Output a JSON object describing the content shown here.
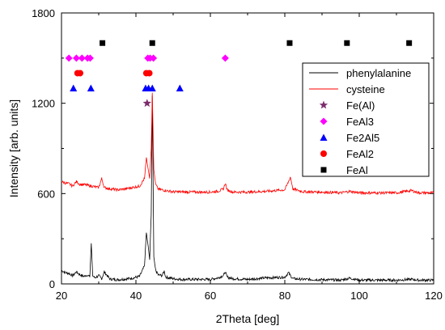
{
  "chart_data": {
    "type": "line",
    "xlabel": "2Theta [deg]",
    "ylabel": "Intensity [arb. units]",
    "xlim": [
      20,
      120
    ],
    "ylim": [
      0,
      1800
    ],
    "xticks": [
      20,
      40,
      60,
      80,
      100,
      120
    ],
    "yticks": [
      0,
      600,
      1200,
      1800
    ],
    "legend_position": "top-right",
    "series": [
      {
        "name": "phenylalanine",
        "kind": "line",
        "color": "#000000",
        "baseline": 25,
        "x": [
          20,
          21,
          22,
          23,
          24,
          25,
          26,
          27,
          27.6,
          28,
          28.4,
          29,
          30,
          30.8,
          31.5,
          33,
          35,
          37,
          39,
          41,
          42.3,
          42.8,
          43.3,
          43.7,
          44.1,
          44.4,
          44.8,
          45.3,
          46,
          47,
          47.6,
          48,
          50,
          52,
          54,
          56,
          58,
          60,
          62,
          63.5,
          64,
          64.5,
          66,
          70,
          75,
          80,
          81,
          81.5,
          82.2,
          85,
          90,
          95,
          97.5,
          100,
          105,
          110,
          114,
          116,
          120
        ],
        "y": [
          90,
          75,
          70,
          55,
          80,
          60,
          50,
          60,
          45,
          270,
          55,
          40,
          55,
          35,
          80,
          32,
          28,
          32,
          38,
          50,
          120,
          340,
          250,
          160,
          460,
          1250,
          180,
          90,
          60,
          55,
          85,
          45,
          35,
          30,
          30,
          30,
          30,
          30,
          40,
          55,
          80,
          45,
          35,
          30,
          40,
          45,
          75,
          55,
          35,
          30,
          28,
          25,
          38,
          25,
          25,
          25,
          30,
          25,
          25
        ]
      },
      {
        "name": "cysteine",
        "kind": "line",
        "color": "#ff0000",
        "baseline": 605,
        "x": [
          20,
          21,
          22,
          23,
          24,
          25,
          26,
          27,
          28,
          29,
          30,
          30.8,
          31.5,
          33,
          35,
          37,
          39,
          41,
          42.3,
          42.8,
          43.3,
          43.7,
          44.1,
          44.4,
          44.8,
          45.3,
          46,
          48,
          50,
          55,
          60,
          62,
          63.5,
          64,
          64.5,
          66,
          70,
          75,
          80,
          81,
          81.5,
          82.2,
          85,
          90,
          95,
          97.5,
          100,
          105,
          110,
          114,
          116,
          120
        ],
        "y": [
          680,
          670,
          665,
          650,
          680,
          660,
          660,
          655,
          650,
          645,
          640,
          700,
          640,
          632,
          625,
          630,
          640,
          650,
          700,
          840,
          760,
          700,
          900,
          1270,
          760,
          660,
          630,
          620,
          612,
          610,
          610,
          615,
          630,
          670,
          625,
          610,
          610,
          615,
          625,
          680,
          710,
          630,
          612,
          610,
          605,
          615,
          605,
          605,
          605,
          620,
          605,
          605
        ]
      },
      {
        "name": "Fe(Al)",
        "kind": "marker",
        "marker": "star",
        "color": "#7b2d6e",
        "x": [
          43
        ],
        "y": [
          1200
        ]
      },
      {
        "name": "FeAl3",
        "kind": "marker",
        "marker": "diamond",
        "color": "#ff00ff",
        "x": [
          22,
          24,
          25.5,
          27,
          27.7,
          43.2,
          43.8,
          44.7,
          64
        ],
        "y": [
          1500,
          1500,
          1500,
          1500,
          1500,
          1500,
          1500,
          1500,
          1500
        ]
      },
      {
        "name": "Fe2Al5",
        "kind": "marker",
        "marker": "triangle",
        "color": "#0000ff",
        "x": [
          23.2,
          27.9,
          42.6,
          43.4,
          44.4,
          51.8
        ],
        "y": [
          1300,
          1300,
          1300,
          1300,
          1300,
          1300
        ]
      },
      {
        "name": "FeAl2",
        "kind": "marker",
        "marker": "circle",
        "color": "#ff0000",
        "x": [
          24.3,
          25,
          42.8,
          43.6
        ],
        "y": [
          1400,
          1400,
          1400,
          1400
        ]
      },
      {
        "name": "FeAl",
        "kind": "marker",
        "marker": "square",
        "color": "#000000",
        "x": [
          31,
          44.4,
          81.3,
          96.7,
          113.4
        ],
        "y": [
          1600,
          1600,
          1600,
          1600,
          1600
        ]
      }
    ]
  }
}
